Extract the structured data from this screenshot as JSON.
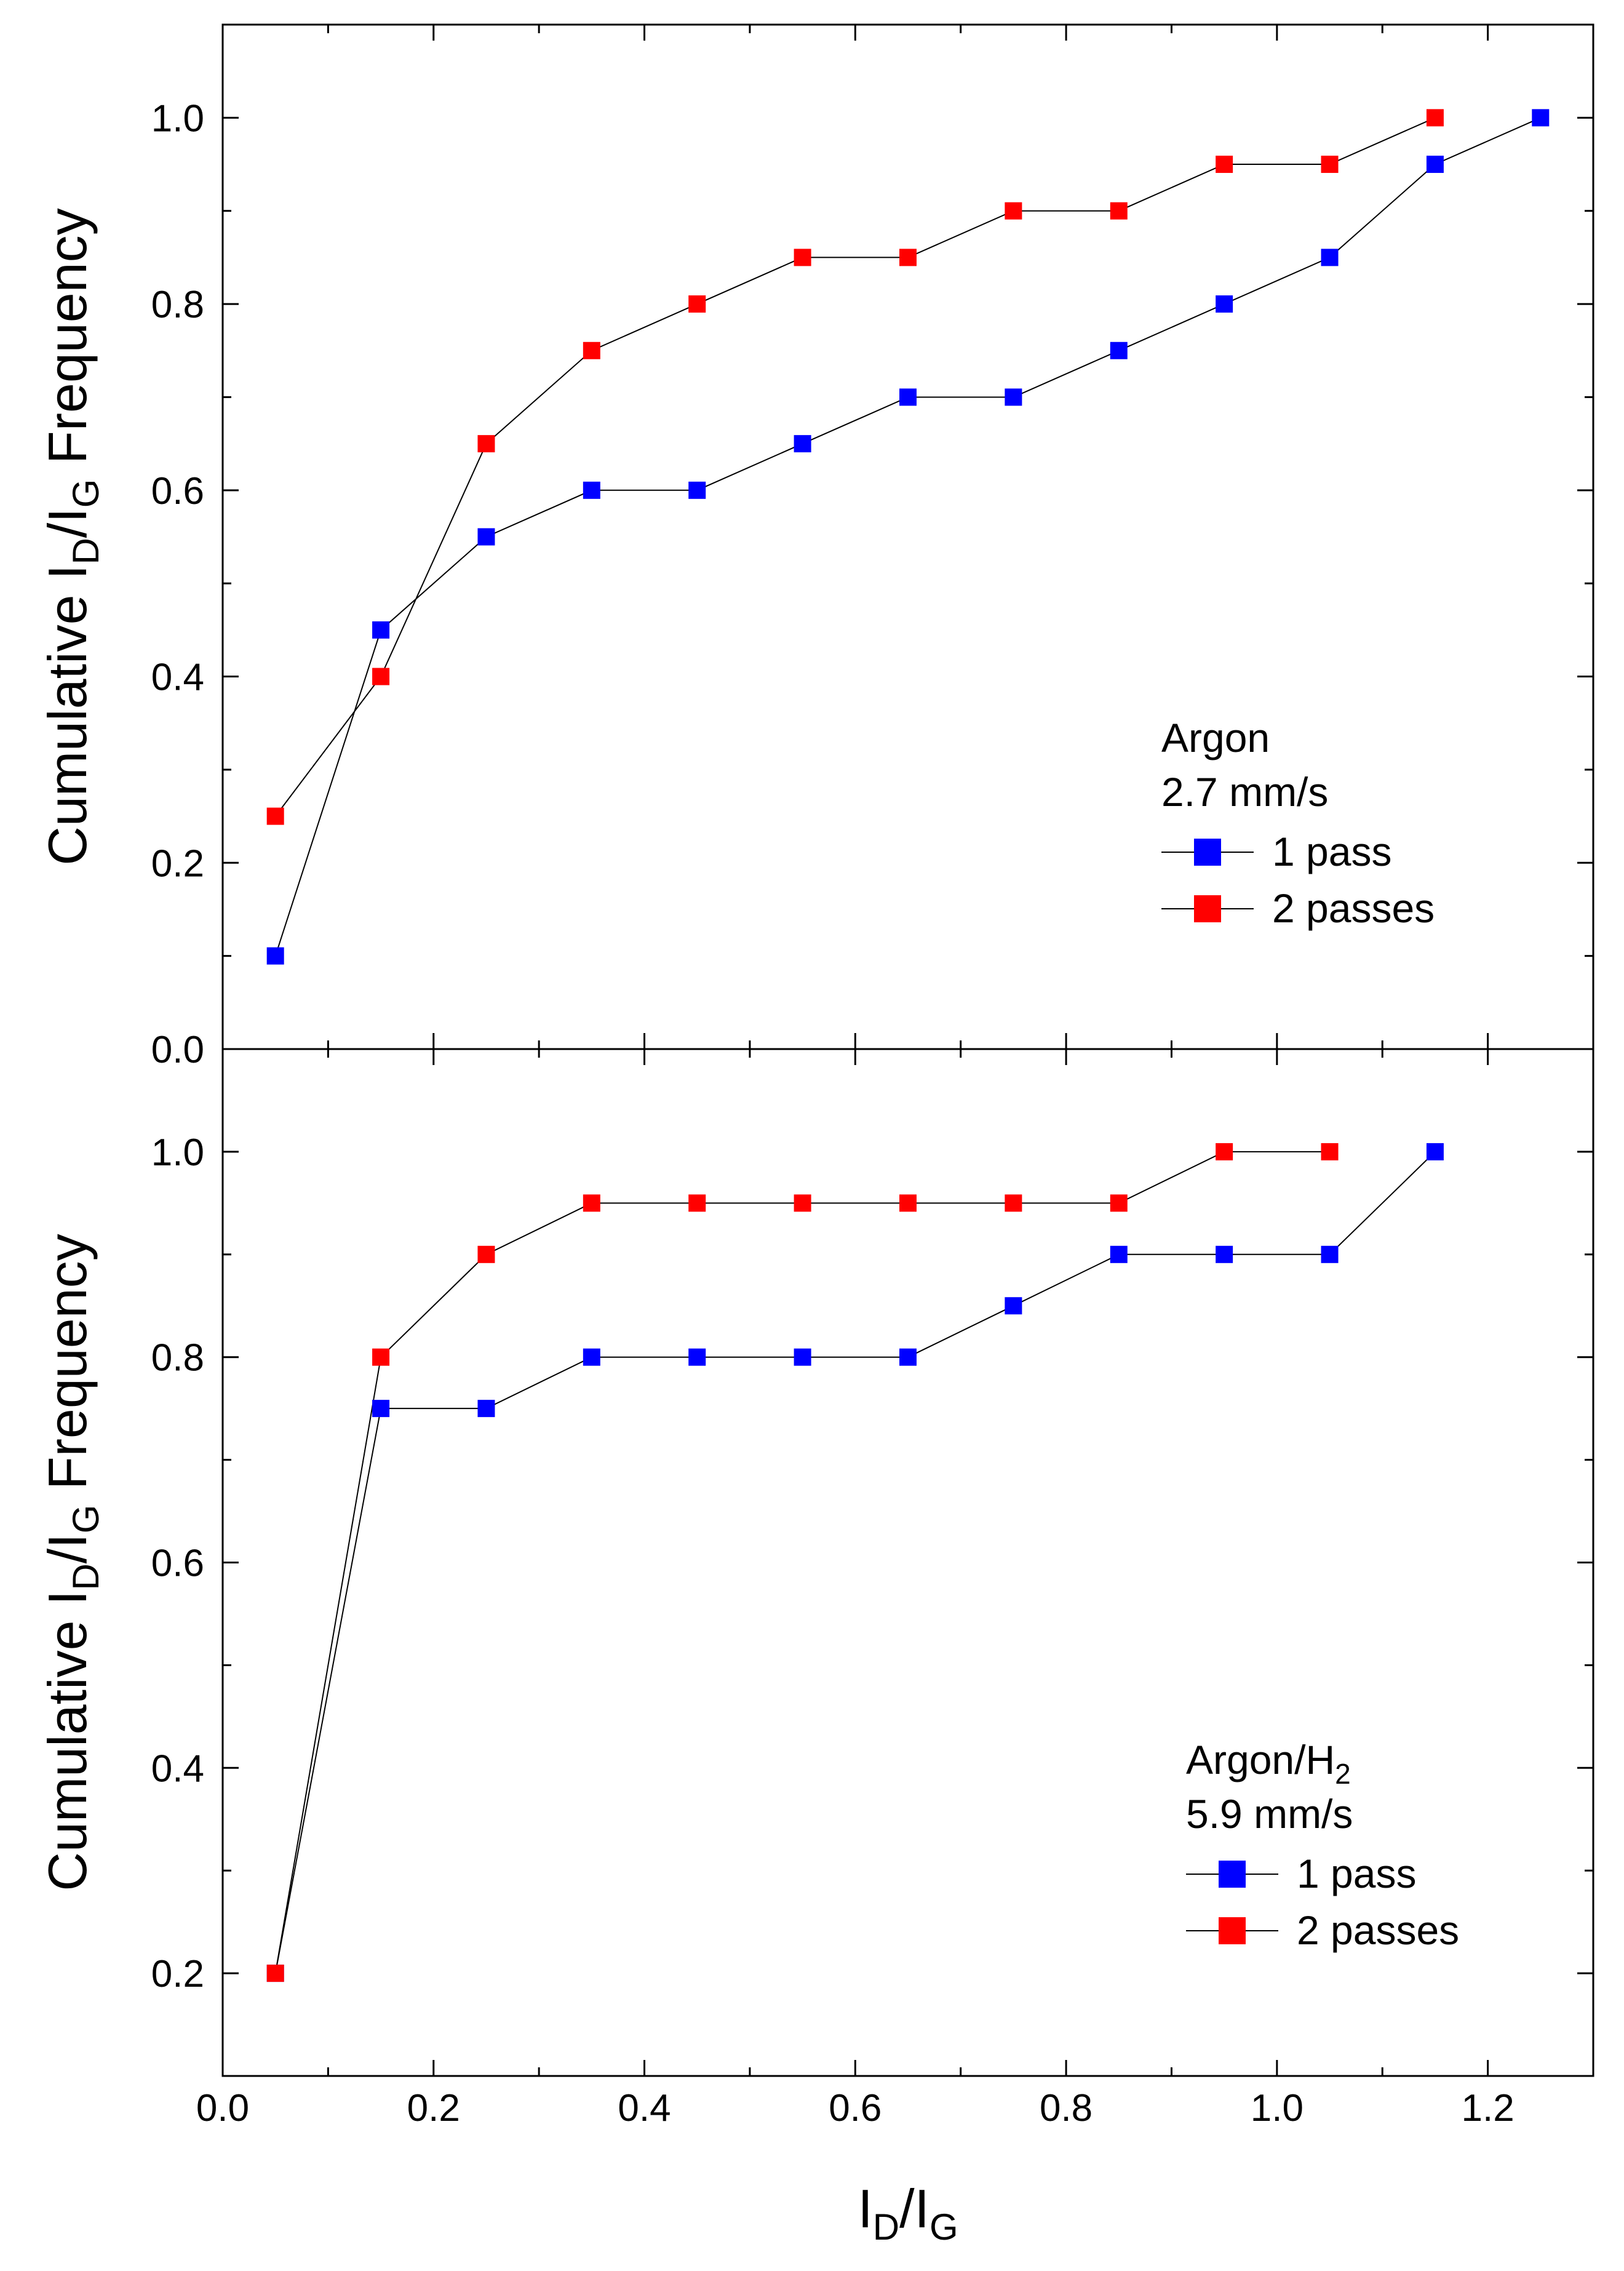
{
  "chart_data": [
    {
      "type": "line",
      "panel": "top",
      "x": [
        0.05,
        0.15,
        0.25,
        0.35,
        0.45,
        0.55,
        0.65,
        0.75,
        0.85,
        0.95,
        1.05,
        1.15,
        1.25
      ],
      "series": [
        {
          "name": "1 pass",
          "color": "#0000ff",
          "x": [
            0.05,
            0.15,
            0.25,
            0.35,
            0.45,
            0.55,
            0.65,
            0.75,
            0.85,
            0.95,
            1.05,
            1.15,
            1.25
          ],
          "values": [
            0.1,
            0.45,
            0.55,
            0.6,
            0.6,
            0.65,
            0.7,
            0.7,
            0.75,
            0.8,
            0.85,
            0.95,
            1.0
          ]
        },
        {
          "name": "2 passes",
          "color": "#ff0000",
          "x": [
            0.05,
            0.15,
            0.25,
            0.35,
            0.45,
            0.55,
            0.65,
            0.75,
            0.85,
            0.95,
            1.05,
            1.15
          ],
          "values": [
            0.25,
            0.4,
            0.65,
            0.75,
            0.8,
            0.85,
            0.85,
            0.9,
            0.9,
            0.95,
            0.95,
            1.0
          ]
        }
      ],
      "legend_title_main": "Argon",
      "legend_title_sub": "",
      "legend_subtitle": "2.7 mm/s",
      "ylabel_main": "Cumulative I",
      "ylabel_sub1": "D",
      "ylabel_mid": "/I",
      "ylabel_sub2": "G",
      "ylabel_end": " Frequency",
      "yticks": [
        "0.0",
        "0.2",
        "0.4",
        "0.6",
        "0.8",
        "1.0"
      ],
      "ylim": [
        0.0,
        1.1
      ],
      "xlim": [
        0.0,
        1.3
      ]
    },
    {
      "type": "line",
      "panel": "bottom",
      "x": [
        0.05,
        0.15,
        0.25,
        0.35,
        0.45,
        0.55,
        0.65,
        0.75,
        0.85,
        0.95,
        1.05,
        1.15
      ],
      "series": [
        {
          "name": "1 pass",
          "color": "#0000ff",
          "x": [
            0.05,
            0.15,
            0.25,
            0.35,
            0.45,
            0.55,
            0.65,
            0.75,
            0.85,
            0.95,
            1.05,
            1.15
          ],
          "values": [
            0.2,
            0.75,
            0.75,
            0.8,
            0.8,
            0.8,
            0.8,
            0.85,
            0.9,
            0.9,
            0.9,
            1.0
          ]
        },
        {
          "name": "2 passes",
          "color": "#ff0000",
          "x": [
            0.05,
            0.15,
            0.25,
            0.35,
            0.45,
            0.55,
            0.65,
            0.75,
            0.85,
            0.95,
            1.05
          ],
          "values": [
            0.2,
            0.8,
            0.9,
            0.95,
            0.95,
            0.95,
            0.95,
            0.95,
            0.95,
            1.0,
            1.0
          ]
        }
      ],
      "legend_title_main": "Argon/H",
      "legend_title_sub": "2",
      "legend_subtitle": "5.9 mm/s",
      "ylabel_main": "Cumulative I",
      "ylabel_sub1": "D",
      "ylabel_mid": "/I",
      "ylabel_sub2": "G",
      "ylabel_end": " Frequency",
      "yticks": [
        "0.2",
        "0.4",
        "0.6",
        "0.8",
        "1.0"
      ],
      "ylim": [
        0.1,
        1.1
      ],
      "xlim": [
        0.0,
        1.3
      ]
    }
  ],
  "x_axis": {
    "xlabel_main": "I",
    "xlabel_sub1": "D",
    "xlabel_mid": "/I",
    "xlabel_sub2": "G",
    "xticks": [
      "0.0",
      "0.2",
      "0.4",
      "0.6",
      "0.8",
      "1.0",
      "1.2"
    ],
    "xtick_values": [
      0.0,
      0.2,
      0.4,
      0.6,
      0.8,
      1.0,
      1.2
    ]
  }
}
